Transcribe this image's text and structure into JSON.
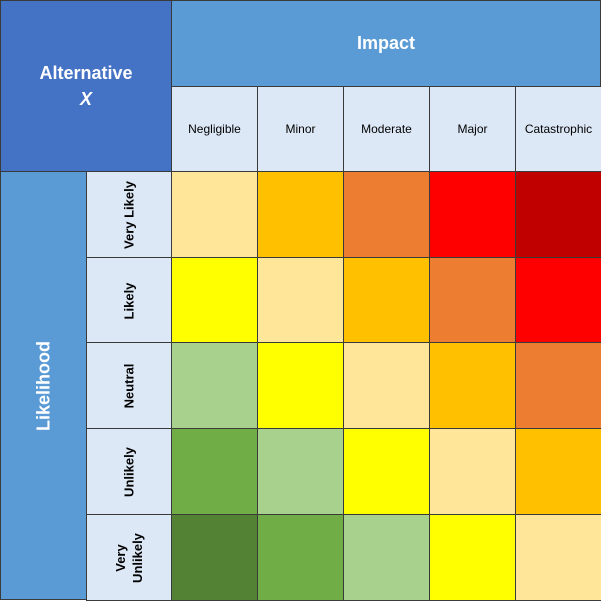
{
  "corner": {
    "title": "Alternative",
    "subtitle": "X"
  },
  "impact": {
    "label": "Impact",
    "columns": [
      "Negligible",
      "Minor",
      "Moderate",
      "Major",
      "Catastrophic"
    ]
  },
  "likelihood": {
    "label": "Likelihood",
    "rows": [
      "Very Likely",
      "Likely",
      "Neutral",
      "Unlikely",
      "Very\nUnlikely"
    ]
  },
  "colors": {
    "band_blue": "#5b9bd5",
    "corner_blue": "#4472c4",
    "header_light": "#dde8f6",
    "risk_levels": [
      "#548235",
      "#70ad47",
      "#a9d18e",
      "#ffff00",
      "#ffe699",
      "#ffc000",
      "#ed7d31",
      "#ff0000",
      "#c00000"
    ]
  },
  "grid": [
    [
      "#ffe699",
      "#ffc000",
      "#ed7d31",
      "#ff0000",
      "#c00000"
    ],
    [
      "#ffff00",
      "#ffe699",
      "#ffc000",
      "#ed7d31",
      "#ff0000"
    ],
    [
      "#a9d18e",
      "#ffff00",
      "#ffe699",
      "#ffc000",
      "#ed7d31"
    ],
    [
      "#70ad47",
      "#a9d18e",
      "#ffff00",
      "#ffe699",
      "#ffc000"
    ],
    [
      "#548235",
      "#70ad47",
      "#a9d18e",
      "#ffff00",
      "#ffe699"
    ]
  ]
}
